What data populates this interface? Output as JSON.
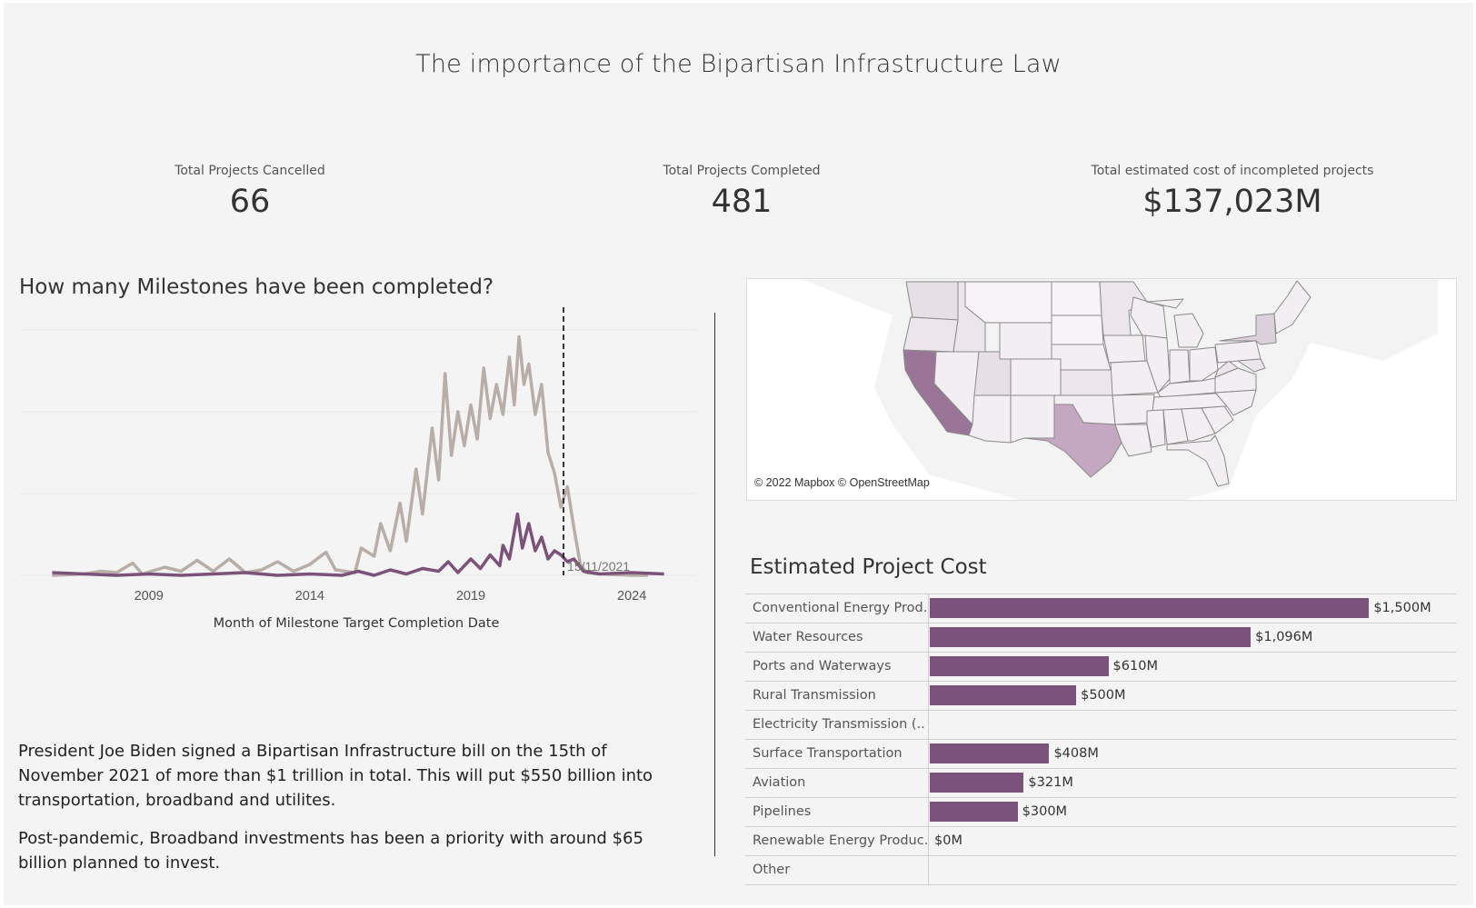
{
  "dashboard": {
    "title": "The importance of the Bipartisan Infrastructure Law"
  },
  "kpis": [
    {
      "label": "Total Projects Cancelled",
      "value": "66"
    },
    {
      "label": "Total Projects Completed",
      "value": "481"
    },
    {
      "label": "Total estimated cost of incompleted projects",
      "value": "$137,023M"
    }
  ],
  "colors": {
    "accent": "#7b5279",
    "secondary": "#b9aea7",
    "texas": "#c4a8c2",
    "california": "#9a7597",
    "state_light": "#ece6ec",
    "state_lighter": "#f2eef2"
  },
  "text": {
    "para1": "President Joe Biden signed a Bipartisan Infrastructure bill on the 15th of November 2021 of more than $1 trillion in total. This will put $550 billion into transportation, broadband and utilites.",
    "para2": "Post-pandemic, Broadband investments has been a priority with around $65 billion planned to invest."
  },
  "map": {
    "credit": "© 2022 Mapbox © OpenStreetMap",
    "highlighted_states": [
      "California",
      "Texas",
      "New York"
    ]
  },
  "chart_data": [
    {
      "type": "line",
      "title": "How many Milestones have been completed?",
      "xlabel": "Month of Milestone Target Completion Date",
      "x_ticks": [
        "2009",
        "2014",
        "2019",
        "2024"
      ],
      "xlim": [
        2005.0,
        2026.0
      ],
      "ylim": [
        0,
        190
      ],
      "grid": true,
      "reference_line": {
        "x": 2021.88,
        "label": "15/11/2021"
      },
      "series": [
        {
          "color": "#b9aea7",
          "points": [
            [
              2006,
              0
            ],
            [
              2007,
              1
            ],
            [
              2007.5,
              3
            ],
            [
              2008,
              2
            ],
            [
              2008.5,
              9
            ],
            [
              2008.8,
              1
            ],
            [
              2009.5,
              6
            ],
            [
              2010,
              3
            ],
            [
              2010.5,
              11
            ],
            [
              2011,
              3
            ],
            [
              2011.5,
              12
            ],
            [
              2012,
              2
            ],
            [
              2012.5,
              4
            ],
            [
              2013,
              10
            ],
            [
              2013.5,
              3
            ],
            [
              2014,
              8
            ],
            [
              2014.5,
              17
            ],
            [
              2014.8,
              4
            ],
            [
              2015.4,
              2
            ],
            [
              2015.6,
              20
            ],
            [
              2016,
              14
            ],
            [
              2016.2,
              38
            ],
            [
              2016.5,
              18
            ],
            [
              2016.8,
              53
            ],
            [
              2017,
              25
            ],
            [
              2017.3,
              78
            ],
            [
              2017.5,
              45
            ],
            [
              2017.8,
              108
            ],
            [
              2018,
              70
            ],
            [
              2018.2,
              148
            ],
            [
              2018.4,
              88
            ],
            [
              2018.6,
              120
            ],
            [
              2018.8,
              95
            ],
            [
              2019,
              125
            ],
            [
              2019.2,
              100
            ],
            [
              2019.4,
              152
            ],
            [
              2019.6,
              115
            ],
            [
              2019.8,
              140
            ],
            [
              2020,
              118
            ],
            [
              2020.2,
              160
            ],
            [
              2020.35,
              125
            ],
            [
              2020.5,
              175
            ],
            [
              2020.65,
              140
            ],
            [
              2020.8,
              155
            ],
            [
              2021,
              118
            ],
            [
              2021.2,
              140
            ],
            [
              2021.4,
              90
            ],
            [
              2021.6,
              75
            ],
            [
              2021.8,
              50
            ],
            [
              2022,
              65
            ],
            [
              2022.2,
              35
            ],
            [
              2022.4,
              8
            ],
            [
              2022.6,
              2
            ],
            [
              2023,
              1
            ],
            [
              2024,
              0
            ],
            [
              2024.5,
              0
            ]
          ]
        },
        {
          "color": "#7b5279",
          "points": [
            [
              2006,
              2
            ],
            [
              2007,
              1
            ],
            [
              2008,
              0
            ],
            [
              2009,
              1
            ],
            [
              2010,
              0
            ],
            [
              2011,
              1
            ],
            [
              2012,
              2
            ],
            [
              2013,
              0
            ],
            [
              2014,
              1
            ],
            [
              2015,
              0
            ],
            [
              2015.5,
              3
            ],
            [
              2016,
              0
            ],
            [
              2016.5,
              4
            ],
            [
              2017,
              1
            ],
            [
              2017.5,
              5
            ],
            [
              2018,
              3
            ],
            [
              2018.3,
              10
            ],
            [
              2018.6,
              2
            ],
            [
              2019,
              12
            ],
            [
              2019.3,
              5
            ],
            [
              2019.6,
              15
            ],
            [
              2019.9,
              7
            ],
            [
              2020,
              22
            ],
            [
              2020.2,
              12
            ],
            [
              2020.45,
              45
            ],
            [
              2020.6,
              20
            ],
            [
              2020.8,
              38
            ],
            [
              2021,
              18
            ],
            [
              2021.2,
              28
            ],
            [
              2021.4,
              12
            ],
            [
              2021.6,
              18
            ],
            [
              2021.8,
              15
            ],
            [
              2022,
              10
            ],
            [
              2022.2,
              12
            ],
            [
              2022.5,
              3
            ],
            [
              2023,
              1
            ],
            [
              2024,
              2
            ],
            [
              2025,
              1
            ]
          ]
        }
      ]
    },
    {
      "type": "bar",
      "title": "Estimated Project Cost",
      "categories": [
        "Conventional Energy Prod..",
        "Water Resources",
        "Ports and Waterways",
        "Rural Transmission",
        "Electricity Transmission (..",
        "Surface Transportation",
        "Aviation",
        "Pipelines",
        "Renewable Energy Produc..",
        "Other"
      ],
      "values": [
        1500,
        1096,
        610,
        500,
        null,
        408,
        321,
        300,
        0,
        null
      ],
      "labels": [
        "$1,500M",
        "$1,096M",
        "$610M",
        "$500M",
        "",
        "$408M",
        "$321M",
        "$300M",
        "$0M",
        ""
      ],
      "xlim": [
        0,
        1800
      ],
      "unit": "M"
    }
  ]
}
